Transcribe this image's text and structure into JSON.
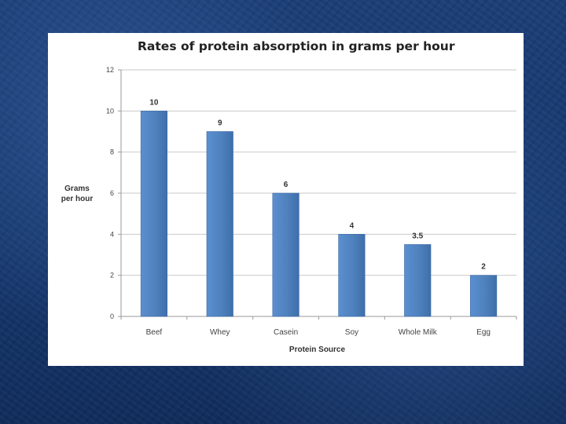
{
  "chart_data": {
    "type": "bar",
    "title": "Rates of protein absorption in grams per hour",
    "xlabel": "Protein Source",
    "ylabel_lines": [
      "Grams",
      "per hour"
    ],
    "categories": [
      "Beef",
      "Whey",
      "Casein",
      "Soy",
      "Whole Milk",
      "Egg"
    ],
    "values": [
      10,
      9,
      6,
      4,
      3.5,
      2
    ],
    "data_labels": [
      "10",
      "9",
      "6",
      "4",
      "3.5",
      "2"
    ],
    "ylim": [
      0,
      12
    ],
    "yticks": [
      0,
      2,
      4,
      6,
      8,
      10,
      12
    ],
    "grid": true,
    "legend": "none",
    "bar_color": "#4f81bd"
  }
}
